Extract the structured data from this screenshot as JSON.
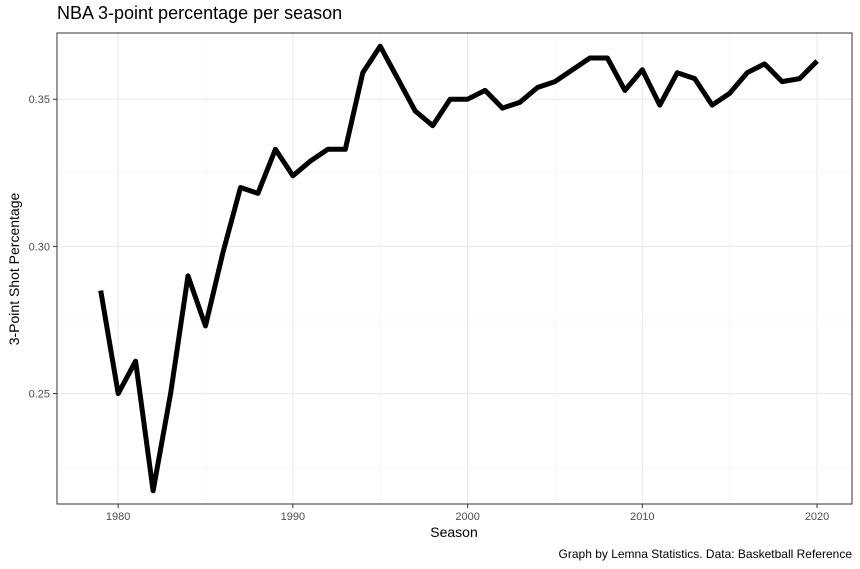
{
  "chart_data": {
    "type": "line",
    "title": "NBA 3-point percentage per season",
    "xlabel": "Season",
    "ylabel": "3-Point Shot Percentage",
    "caption": "Graph by Lemna Statistics. Data: Basketball Reference",
    "xlim": [
      1976.5,
      2022
    ],
    "ylim": [
      0.2125,
      0.3725
    ],
    "x_ticks": [
      1980,
      1990,
      2000,
      2010,
      2020
    ],
    "y_ticks": [
      0.25,
      0.3,
      0.35
    ],
    "grid": true,
    "line_color": "#000000",
    "series": [
      {
        "x": [
          1979,
          1980,
          1981,
          1982,
          1983,
          1984,
          1985,
          1986,
          1987,
          1988,
          1989,
          1990,
          1991,
          1992,
          1993,
          1994,
          1995,
          1996,
          1997,
          1998,
          1999,
          2000,
          2001,
          2002,
          2003,
          2004,
          2005,
          2006,
          2007,
          2008,
          2009,
          2010,
          2011,
          2012,
          2013,
          2014,
          2015,
          2016,
          2017,
          2018,
          2019,
          2020
        ],
        "y": [
          0.285,
          0.25,
          0.261,
          0.217,
          0.25,
          0.29,
          0.273,
          0.298,
          0.32,
          0.318,
          0.333,
          0.324,
          0.329,
          0.333,
          0.333,
          0.359,
          0.368,
          0.357,
          0.346,
          0.341,
          0.35,
          0.35,
          0.353,
          0.347,
          0.349,
          0.354,
          0.356,
          0.36,
          0.364,
          0.364,
          0.353,
          0.36,
          0.348,
          0.359,
          0.357,
          0.348,
          0.352,
          0.359,
          0.362,
          0.356,
          0.357,
          0.363
        ]
      }
    ]
  }
}
